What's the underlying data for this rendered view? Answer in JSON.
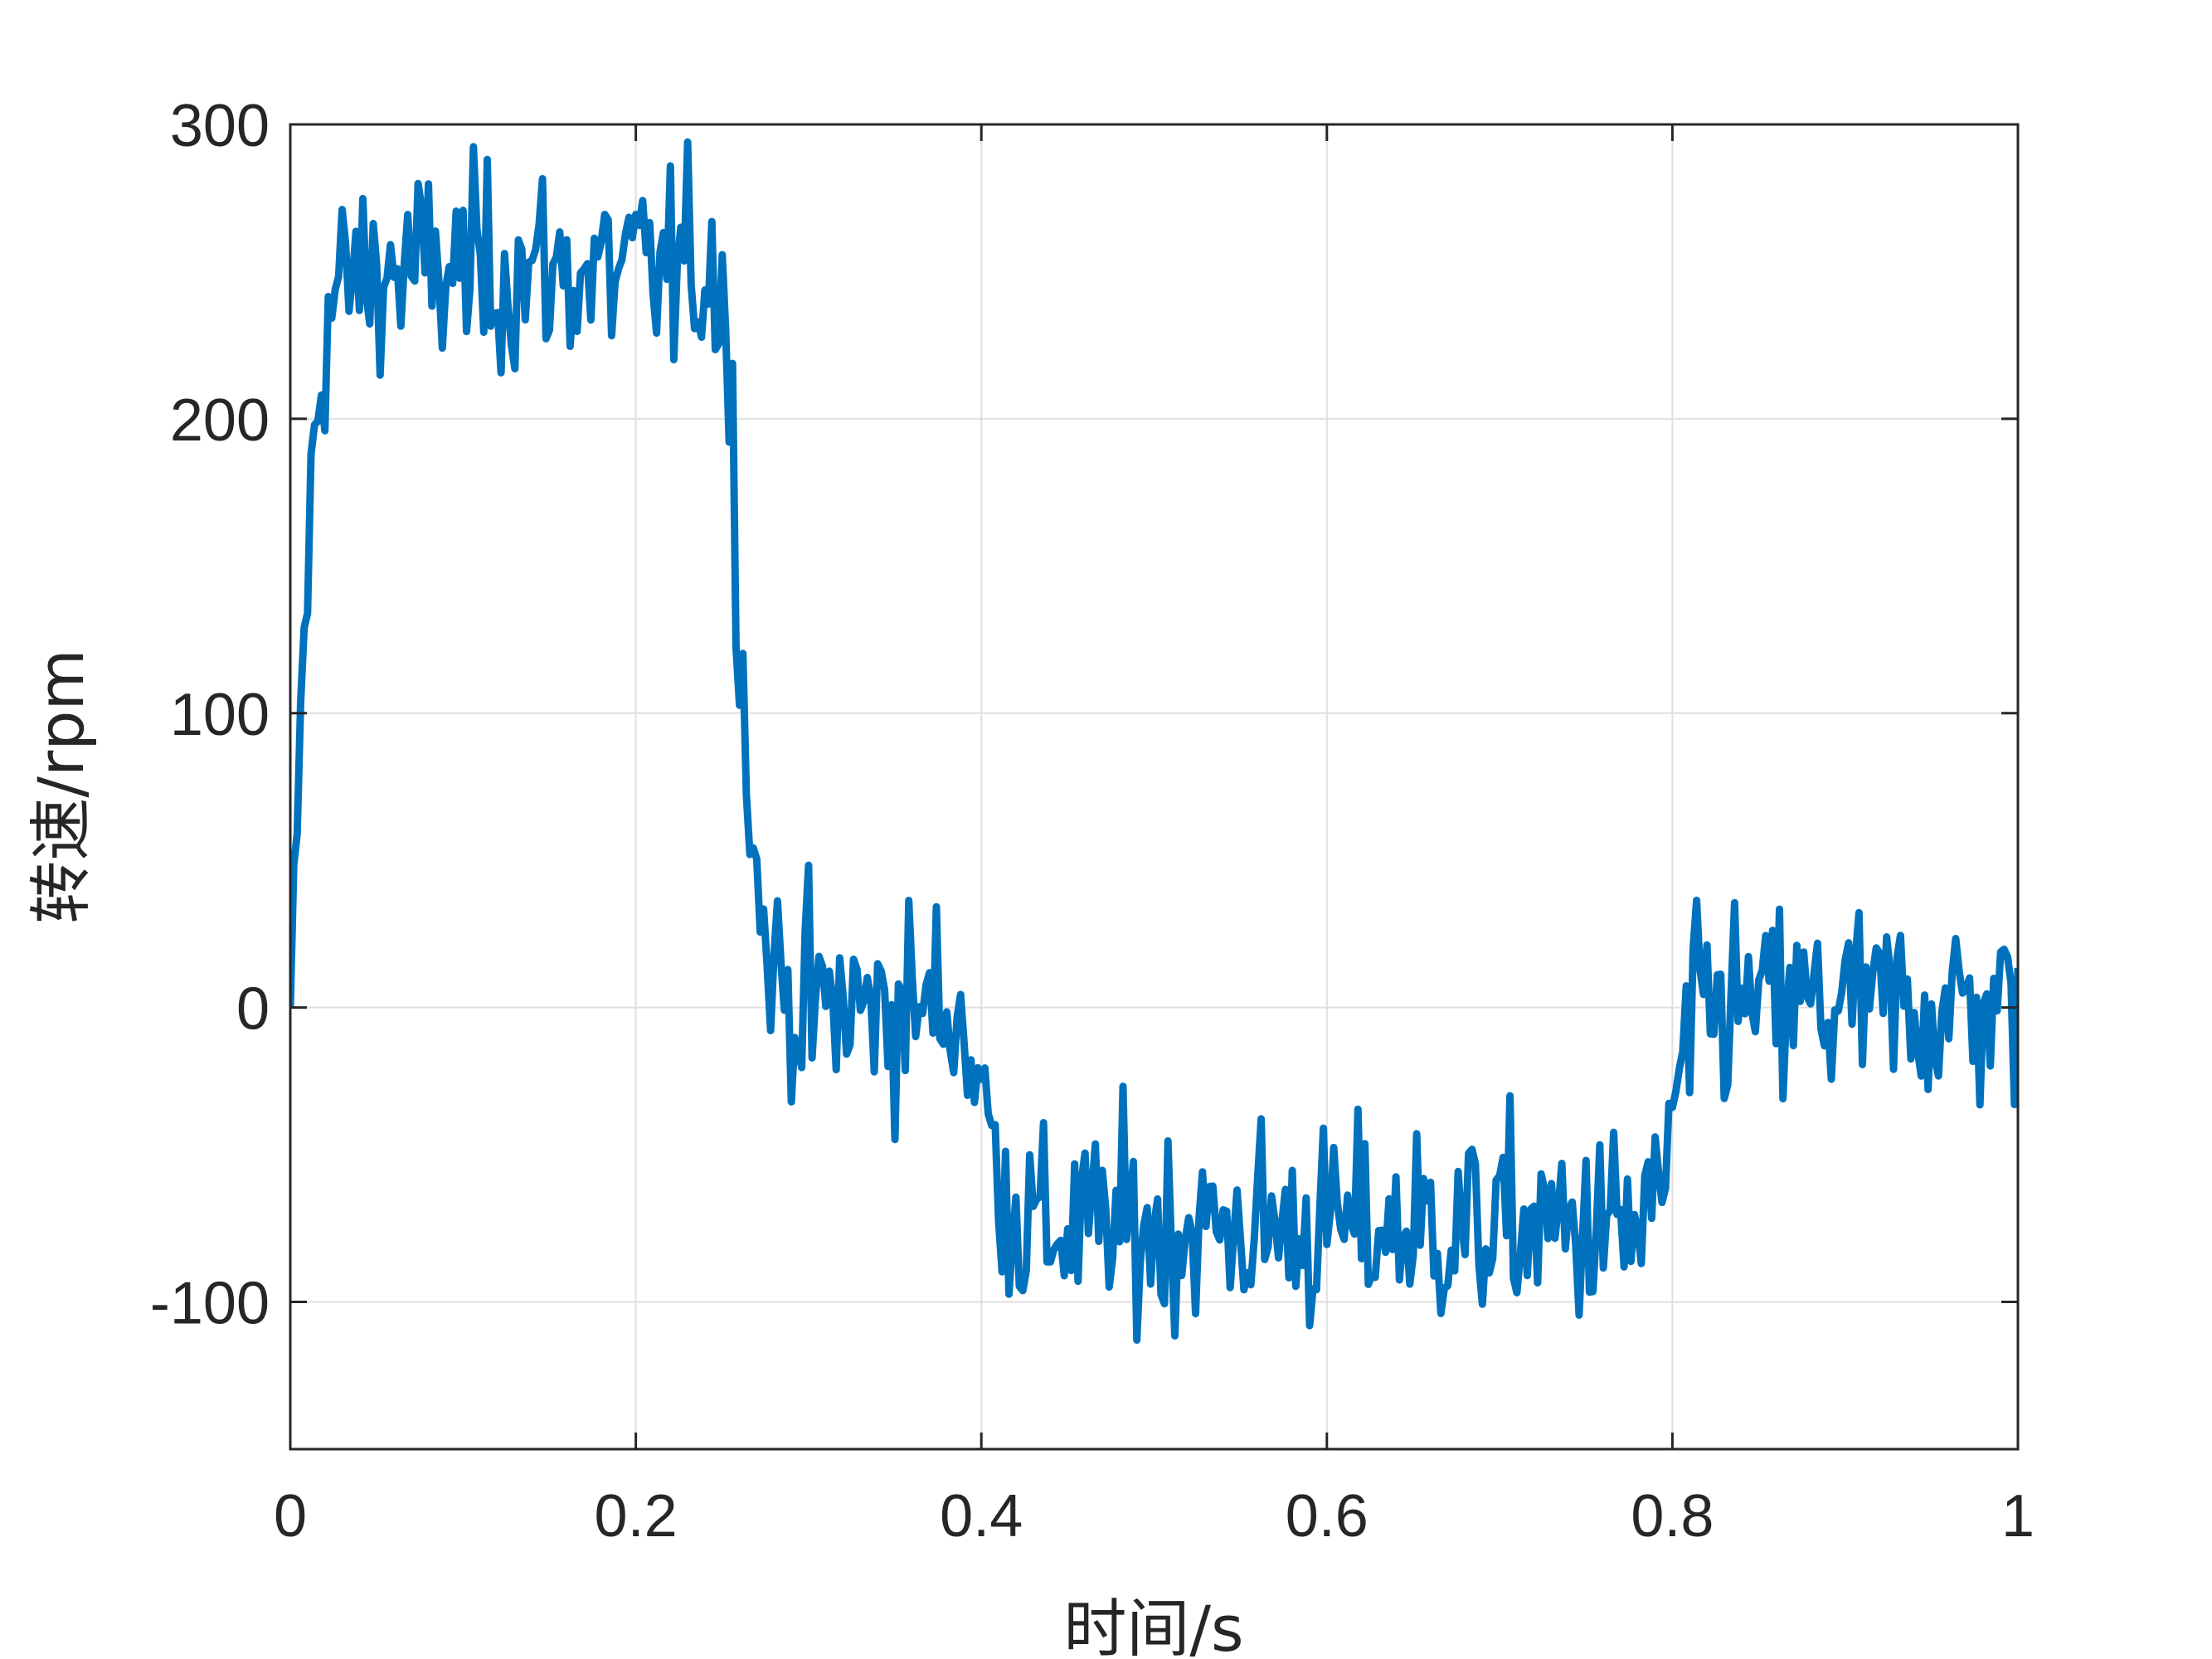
{
  "chart_data": {
    "type": "line",
    "title": "",
    "xlabel": "时间/s",
    "ylabel": "转速/rpm",
    "xlim": [
      0,
      1
    ],
    "ylim": [
      -150,
      300
    ],
    "xticks": [
      0,
      0.2,
      0.4,
      0.6,
      0.8,
      1
    ],
    "xtick_labels": [
      "0",
      "0.2",
      "0.4",
      "0.6",
      "0.8",
      "1"
    ],
    "yticks": [
      -100,
      0,
      100,
      200,
      300
    ],
    "ytick_labels": [
      "-100",
      "0",
      "100",
      "200",
      "300"
    ],
    "grid": true,
    "legend": "none",
    "series_color": "#0072BD",
    "series": [
      {
        "x": [
          0,
          0.005,
          0.01,
          0.015,
          0.02,
          0.025,
          0.03,
          0.04,
          0.05,
          0.06,
          0.07,
          0.08,
          0.09,
          0.1,
          0.11,
          0.12,
          0.13,
          0.14,
          0.15,
          0.16,
          0.17,
          0.18,
          0.19,
          0.2,
          0.21,
          0.22,
          0.23,
          0.24,
          0.25,
          0.255,
          0.26,
          0.265,
          0.27,
          0.28,
          0.29,
          0.3,
          0.31,
          0.32,
          0.33,
          0.34,
          0.35,
          0.36,
          0.37,
          0.38,
          0.39,
          0.4,
          0.41,
          0.42,
          0.43,
          0.44,
          0.45,
          0.46,
          0.47,
          0.48,
          0.49,
          0.5,
          0.51,
          0.52,
          0.53,
          0.54,
          0.55,
          0.56,
          0.57,
          0.58,
          0.59,
          0.6,
          0.61,
          0.62,
          0.63,
          0.64,
          0.65,
          0.66,
          0.67,
          0.68,
          0.69,
          0.7,
          0.71,
          0.72,
          0.73,
          0.74,
          0.75,
          0.76,
          0.77,
          0.78,
          0.79,
          0.8,
          0.81,
          0.82,
          0.83,
          0.84,
          0.85,
          0.86,
          0.87,
          0.88,
          0.89,
          0.9,
          0.91,
          0.92,
          0.93,
          0.94,
          0.95,
          0.96,
          0.97,
          0.98,
          0.99,
          1.0
        ],
        "y": [
          0,
          80,
          150,
          200,
          230,
          240,
          245,
          248,
          250,
          250,
          250,
          250,
          250,
          250,
          250,
          250,
          250,
          250,
          250,
          250,
          250,
          250,
          250,
          250,
          250,
          250,
          250,
          250,
          250,
          200,
          140,
          80,
          40,
          10,
          5,
          0,
          0,
          0,
          0,
          0,
          0,
          0,
          0,
          0,
          -5,
          -30,
          -55,
          -70,
          -75,
          -75,
          -75,
          -75,
          -75,
          -75,
          -75,
          -75,
          -75,
          -75,
          -75,
          -75,
          -75,
          -75,
          -75,
          -75,
          -75,
          -75,
          -75,
          -75,
          -75,
          -75,
          -75,
          -75,
          -75,
          -75,
          -75,
          -75,
          -75,
          -75,
          -75,
          -75,
          -75,
          -75,
          -75,
          -75,
          -70,
          -40,
          -10,
          0,
          0,
          0,
          0,
          0,
          0,
          0,
          0,
          0,
          0,
          0,
          0,
          0,
          0,
          0,
          0,
          0,
          0,
          0
        ],
        "noise_amplitude": 45
      }
    ]
  }
}
